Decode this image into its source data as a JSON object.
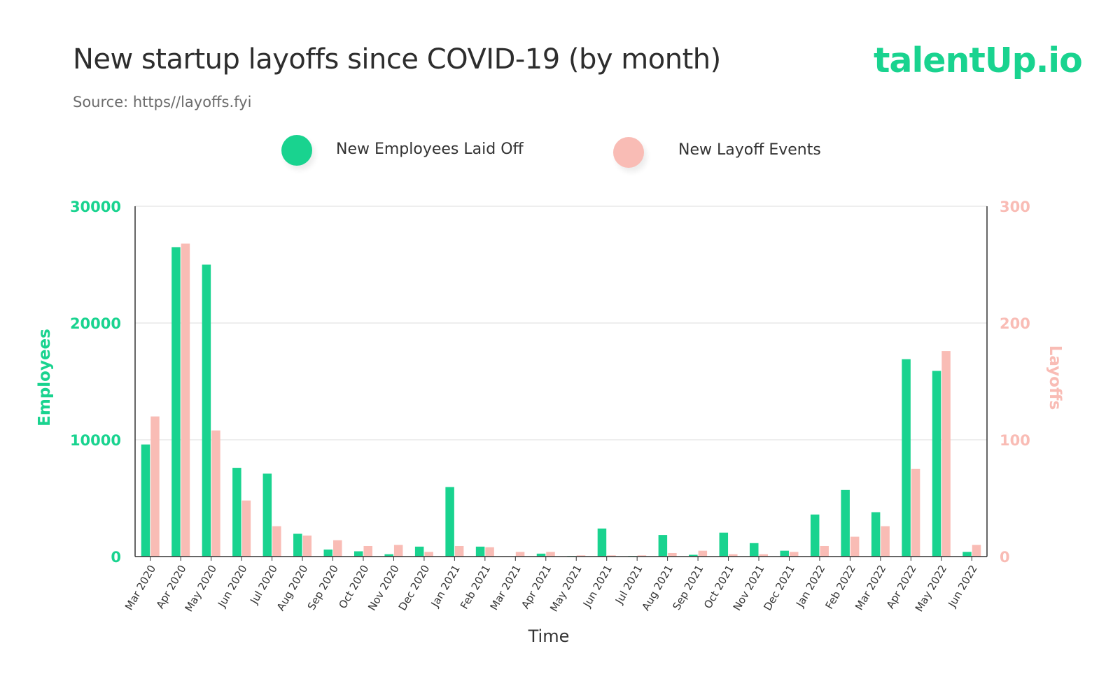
{
  "header": {
    "title": "New startup layoffs since COVID-19 (by month)",
    "source": "Source: https//layoffs.fyi",
    "logo_text": "talentUp.io"
  },
  "colors": {
    "employees": "#19d38f",
    "layoffs": "#f9bcb5",
    "grid": "#dddddd",
    "axis": "#333333"
  },
  "chart_data": {
    "type": "bar",
    "title": "New startup layoffs since COVID-19 (by month)",
    "xlabel": "Time",
    "ylabel_left": "Employees",
    "ylabel_right": "Layoffs",
    "ylim_left": [
      0,
      30000
    ],
    "ylim_right": [
      0,
      300
    ],
    "yticks_left": [
      "0",
      "10000",
      "20000",
      "30000"
    ],
    "yticks_right": [
      "0",
      "100",
      "200",
      "300"
    ],
    "grid": true,
    "legend_position": "top",
    "categories": [
      "Mar 2020",
      "Apr 2020",
      "May 2020",
      "Jun 2020",
      "Jul 2020",
      "Aug 2020",
      "Sep 2020",
      "Oct 2020",
      "Nov 2020",
      "Dec 2020",
      "Jan 2021",
      "Feb 2021",
      "Mar 2021",
      "Apr 2021",
      "May 2021",
      "Jun 2021",
      "Jul 2021",
      "Aug 2021",
      "Sep 2021",
      "Oct 2021",
      "Nov 2021",
      "Dec 2021",
      "Jan 2022",
      "Feb 2022",
      "Mar 2022",
      "Apr 2022",
      "May 2022",
      "Jun 2022"
    ],
    "series": [
      {
        "name": "New Employees Laid Off",
        "axis": "left",
        "values": [
          9600,
          26500,
          25000,
          7600,
          7100,
          1950,
          600,
          450,
          200,
          850,
          5950,
          850,
          0,
          250,
          50,
          2400,
          50,
          1850,
          150,
          2050,
          1150,
          500,
          3600,
          5700,
          3800,
          16900,
          15900,
          400
        ]
      },
      {
        "name": "New Layoff Events",
        "axis": "right",
        "values": [
          120,
          268,
          108,
          48,
          26,
          18,
          14,
          9,
          10,
          4,
          9,
          8,
          4,
          4,
          1,
          1,
          1,
          3,
          5,
          2,
          2,
          4,
          9,
          17,
          26,
          75,
          176,
          10
        ]
      }
    ]
  }
}
